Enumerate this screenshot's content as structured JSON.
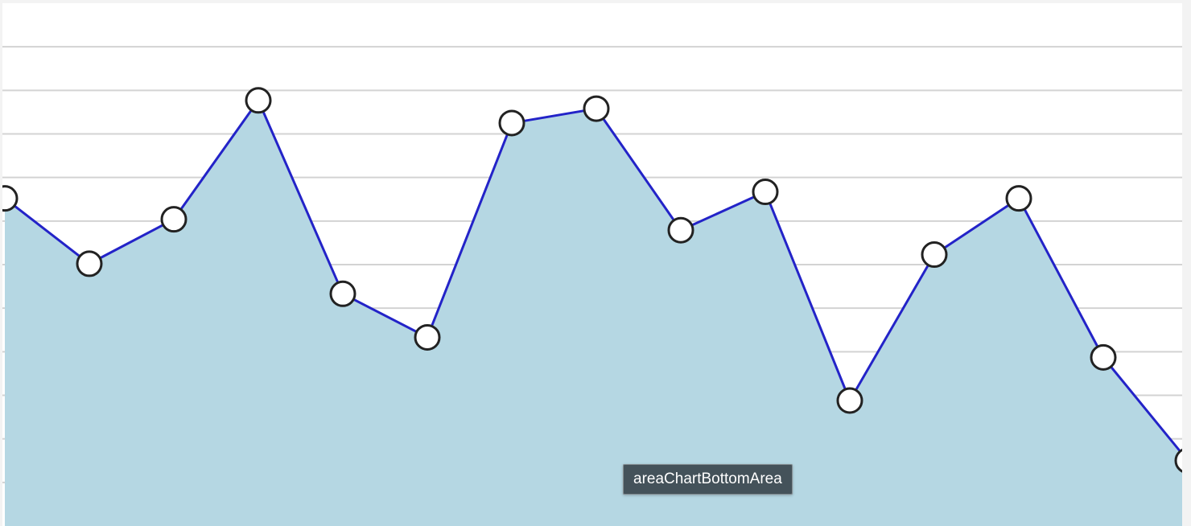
{
  "chart_data": {
    "type": "area",
    "title": "",
    "xlabel": "",
    "ylabel": "",
    "grid": true,
    "ylim": [
      0,
      12
    ],
    "y_gridlines": [
      1,
      2,
      3,
      4,
      5,
      6,
      7,
      8,
      9,
      10,
      11
    ],
    "x": [
      0,
      1,
      2,
      3,
      4,
      5,
      6,
      7,
      8,
      9,
      10,
      11,
      12,
      13,
      14
    ],
    "series": [
      {
        "values": [
          7.52,
          6.02,
          7.04,
          9.77,
          5.33,
          4.33,
          9.25,
          9.58,
          6.79,
          7.67,
          2.88,
          6.23,
          7.52,
          3.87,
          1.5
        ]
      }
    ],
    "colors": {
      "area_fill": "#b5d7e3",
      "line": "#2323c8",
      "marker_fill": "#ffffff",
      "marker_stroke": "#222222",
      "grid": "#d3d3d3"
    }
  },
  "tooltip": {
    "label": "areaChartBottomArea"
  }
}
